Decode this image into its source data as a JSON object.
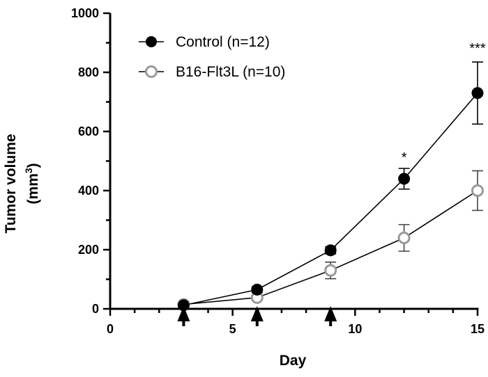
{
  "chart_data": {
    "type": "line",
    "title": "",
    "xlabel": "Day",
    "ylabel": "Tumor volume",
    "ylabel_unit": "(mm",
    "ylabel_unit_sup": "3",
    "ylabel_unit_close": ")",
    "xlim": [
      0,
      15
    ],
    "ylim": [
      0,
      1000
    ],
    "xticks": [
      0,
      5,
      10,
      15
    ],
    "yticks": [
      0,
      200,
      400,
      600,
      800,
      1000
    ],
    "x_minor_step": 1,
    "y_minor_step": 100,
    "grid": false,
    "legend_position": "top-left",
    "treatment_days": [
      3,
      6,
      9
    ],
    "series": [
      {
        "name": "Control (n=12)",
        "marker": "filled-circle",
        "color": "#000000",
        "x": [
          3,
          6,
          9,
          12,
          15
        ],
        "y": [
          12,
          65,
          198,
          440,
          730
        ],
        "err": [
          5,
          10,
          12,
          35,
          105
        ]
      },
      {
        "name": "B16-Flt3L (n=10)",
        "marker": "open-circle",
        "color": "#999999",
        "x": [
          3,
          6,
          9,
          12,
          15
        ],
        "y": [
          15,
          38,
          130,
          240,
          400
        ],
        "err": [
          5,
          8,
          28,
          45,
          67
        ]
      }
    ],
    "annotations": [
      {
        "text": "*",
        "x": 12,
        "y": 520
      },
      {
        "text": "***",
        "x": 15,
        "y": 890
      }
    ]
  }
}
